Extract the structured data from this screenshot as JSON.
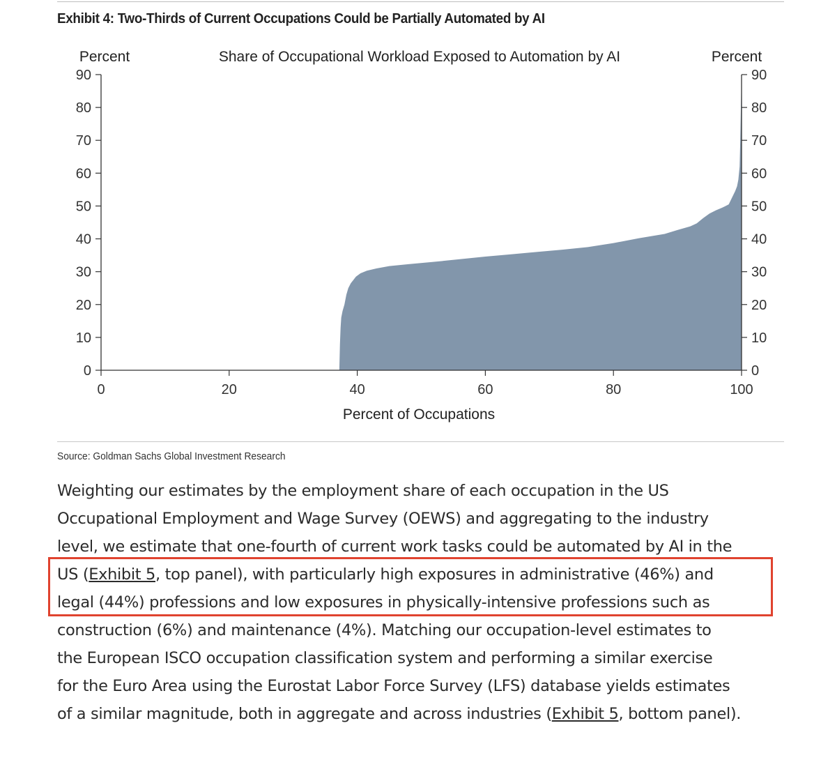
{
  "exhibit_title": "Exhibit 4: Two-Thirds of Current Occupations Could be Partially Automated by AI",
  "source_text": "Source: Goldman Sachs Global Investment Research",
  "colors": {
    "area_fill": "#8296ab",
    "highlight_border": "#e0432f"
  },
  "chart_data": {
    "type": "area",
    "title": "Share of Occupational Workload Exposed to Automation by AI",
    "xlabel": "Percent of Occupations",
    "ylabel_left": "Percent",
    "ylabel_right": "Percent",
    "xlim": [
      0,
      100
    ],
    "ylim": [
      0,
      90
    ],
    "xticks": [
      0,
      20,
      40,
      60,
      80,
      100
    ],
    "yticks": [
      0,
      10,
      20,
      30,
      40,
      50,
      60,
      70,
      80,
      90
    ],
    "grid": false,
    "series": [
      {
        "x": [
          37.2,
          37.3,
          37.4,
          37.5,
          37.7,
          38.0,
          38.3,
          38.6,
          39.0,
          39.4,
          39.8,
          40.5,
          41.5,
          43,
          45,
          48,
          52,
          56,
          60,
          64,
          68,
          72,
          76,
          80,
          84,
          88,
          90,
          92,
          93,
          94,
          95,
          96,
          97,
          97.5,
          98,
          98.5,
          99,
          99.3,
          99.5,
          99.7,
          99.8,
          100
        ],
        "y": [
          0,
          8,
          13,
          16,
          18,
          20,
          23,
          25,
          26.5,
          27.5,
          28.5,
          29.5,
          30.3,
          31,
          31.7,
          32.3,
          33,
          33.8,
          34.6,
          35.3,
          36,
          36.7,
          37.5,
          38.7,
          40.2,
          41.5,
          42.7,
          43.8,
          44.7,
          46.3,
          47.7,
          48.7,
          49.5,
          50,
          50.5,
          52.5,
          54.5,
          56,
          58,
          62,
          70,
          90
        ]
      }
    ]
  },
  "paragraph": {
    "line1": "Weighting our estimates by the employment share of each occupation in the US",
    "line2": "Occupational Employment and Wage Survey (OEWS) and aggregating to the industry",
    "line3": "level, we estimate that one-fourth of current work tasks could be automated by AI in the",
    "line4_pre": "US (",
    "line4_link": "Exhibit 5",
    "line4_post": ", top panel), with particularly high exposures in administrative (46%) and",
    "line5": "legal (44%) professions and low exposures in physically-intensive professions such as",
    "line6": "construction (6%) and maintenance (4%). Matching our occupation-level estimates to",
    "line7": "the European ISCO occupation classification system and performing a similar exercise",
    "line8": "for the Euro Area using the Eurostat Labor Force Survey (LFS) database yields estimates",
    "line9_pre": "of a similar magnitude, both in aggregate and across industries (",
    "line9_link": "Exhibit 5",
    "line9_post": ", bottom panel)."
  }
}
